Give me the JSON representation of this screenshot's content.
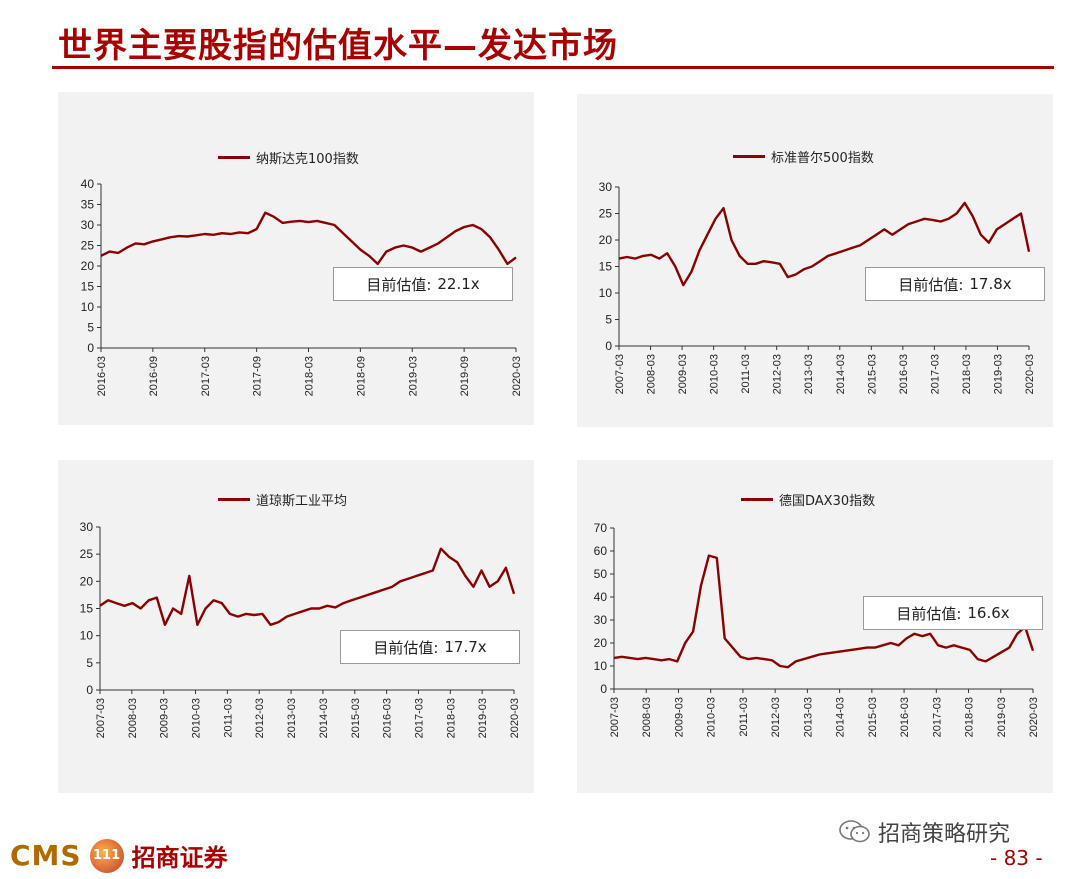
{
  "page": {
    "title": "世界主要股指的估值水平—发达市场",
    "footer": {
      "brand_latin": "CMS",
      "coin_text": "111",
      "brand_cn": "招商证券",
      "wechat": "招商策略研究",
      "page_number": "- 83 -"
    },
    "colors": {
      "accent": "#a80000",
      "series": "#8b0000",
      "panel_bg": "#f2f2f2"
    }
  },
  "chart_data": [
    {
      "type": "line",
      "legend": "纳斯达克100指数",
      "annotation": {
        "label": "目前估值:",
        "value": "22.1x"
      },
      "xlabels": [
        "2016-03",
        "2016-09",
        "2017-03",
        "2017-09",
        "2018-03",
        "2018-09",
        "2019-03",
        "2019-09",
        "2020-03"
      ],
      "ylim": [
        0,
        40
      ],
      "yticks": [
        0,
        5,
        10,
        15,
        20,
        25,
        30,
        35,
        40
      ],
      "series": [
        {
          "values": [
            22.5,
            23.5,
            23.2,
            24.5,
            25.5,
            25.3,
            26,
            26.5,
            27,
            27.3,
            27.2,
            27.5,
            27.8,
            27.6,
            28,
            27.8,
            28.2,
            28,
            29,
            33,
            32,
            30.5,
            30.8,
            31,
            30.7,
            31,
            30.5,
            30,
            28,
            26,
            24,
            22.5,
            20.5,
            23.5,
            24.5,
            25,
            24.5,
            23.5,
            24.5,
            25.5,
            27,
            28.5,
            29.5,
            30,
            29,
            27,
            24,
            20.5,
            22.1
          ]
        }
      ]
    },
    {
      "type": "line",
      "legend": "标准普尔500指数",
      "annotation": {
        "label": "目前估值:",
        "value": "17.8x"
      },
      "xlabels": [
        "2007-03",
        "2008-03",
        "2009-03",
        "2010-03",
        "2011-03",
        "2012-03",
        "2013-03",
        "2014-03",
        "2015-03",
        "2016-03",
        "2017-03",
        "2018-03",
        "2019-03",
        "2020-03"
      ],
      "ylim": [
        0,
        30
      ],
      "yticks": [
        0,
        5,
        10,
        15,
        20,
        25,
        30
      ],
      "series": [
        {
          "values": [
            16.5,
            16.8,
            16.5,
            17,
            17.2,
            16.5,
            17.5,
            15,
            11.5,
            14,
            18,
            21,
            24,
            26,
            20,
            17,
            15.5,
            15.5,
            16,
            15.8,
            15.5,
            13,
            13.5,
            14.5,
            15,
            16,
            17,
            17.5,
            18,
            18.5,
            19,
            20,
            21,
            22,
            21,
            22,
            23,
            23.5,
            24,
            23.8,
            23.5,
            24,
            25,
            27,
            24.5,
            21,
            19.5,
            22,
            23,
            24,
            25,
            17.8
          ]
        }
      ]
    },
    {
      "type": "line",
      "legend": "道琼斯工业平均",
      "annotation": {
        "label": "目前估值:",
        "value": "17.7x"
      },
      "xlabels": [
        "2007-03",
        "2008-03",
        "2009-03",
        "2010-03",
        "2011-03",
        "2012-03",
        "2013-03",
        "2014-03",
        "2015-03",
        "2016-03",
        "2017-03",
        "2018-03",
        "2019-03",
        "2020-03"
      ],
      "ylim": [
        0,
        30
      ],
      "yticks": [
        0,
        5,
        10,
        15,
        20,
        25,
        30
      ],
      "series": [
        {
          "values": [
            15.5,
            16.5,
            16,
            15.5,
            16,
            15,
            16.5,
            17,
            12,
            15,
            14,
            21,
            12,
            15,
            16.5,
            16,
            14,
            13.5,
            14,
            13.8,
            14,
            12,
            12.5,
            13.5,
            14,
            14.5,
            15,
            15,
            15.5,
            15.2,
            16,
            16.5,
            17,
            17.5,
            18,
            18.5,
            19,
            20,
            20.5,
            21,
            21.5,
            22,
            26,
            24.5,
            23.5,
            21,
            19,
            22,
            19,
            20,
            22.5,
            17.7
          ]
        }
      ]
    },
    {
      "type": "line",
      "legend": "德国DAX30指数",
      "annotation": {
        "label": "目前估值:",
        "value": "16.6x"
      },
      "xlabels": [
        "2007-03",
        "2008-03",
        "2009-03",
        "2010-03",
        "2011-03",
        "2012-03",
        "2013-03",
        "2014-03",
        "2015-03",
        "2016-03",
        "2017-03",
        "2018-03",
        "2019-03",
        "2020-03"
      ],
      "ylim": [
        0,
        70
      ],
      "yticks": [
        0,
        10,
        20,
        30,
        40,
        50,
        60,
        70
      ],
      "series": [
        {
          "values": [
            13.5,
            14,
            13.5,
            13,
            13.5,
            13,
            12.5,
            13,
            12,
            20,
            25,
            45,
            58,
            57,
            22,
            18,
            14,
            13,
            13.5,
            13,
            12.5,
            10,
            9.5,
            12,
            13,
            14,
            15,
            15.5,
            16,
            16.5,
            17,
            17.5,
            18,
            18,
            19,
            20,
            19,
            22,
            24,
            23,
            24,
            19,
            18,
            19,
            18,
            17,
            13,
            12,
            14,
            16,
            18,
            24,
            27,
            16.6
          ]
        }
      ]
    }
  ]
}
